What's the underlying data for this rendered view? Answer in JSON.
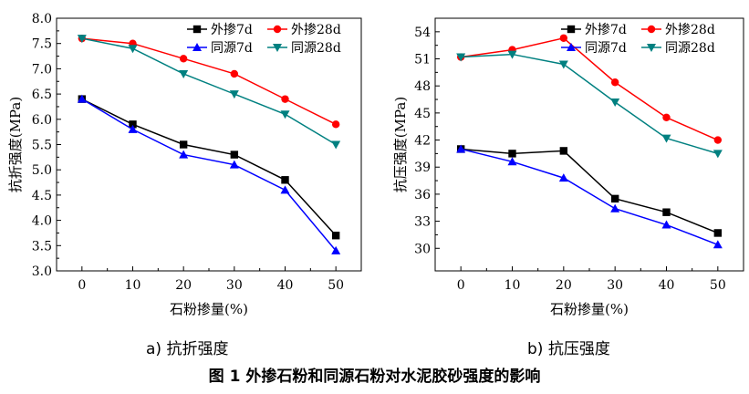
{
  "captions": {
    "a": "a) 抗折强度",
    "b": "b) 抗压强度",
    "figure": "图 1 外掺石粉和同源石粉对水泥胶砂强度的影响"
  },
  "chart_data": [
    {
      "type": "line",
      "title": "",
      "xlabel": "石粉掺量(%)",
      "ylabel": "抗折强度(MPa)",
      "x": [
        0,
        10,
        20,
        30,
        40,
        50
      ],
      "xticks": [
        "0",
        "10",
        "20",
        "30",
        "40",
        "50"
      ],
      "xlim": [
        -5,
        55
      ],
      "ylim": [
        3.0,
        8.0
      ],
      "yticks": [
        "3.0",
        "3.5",
        "4.0",
        "4.5",
        "5.0",
        "5.5",
        "6.0",
        "6.5",
        "7.0",
        "7.5",
        "8.0"
      ],
      "grid": false,
      "legend_position": "top-right",
      "series": [
        {
          "name": "外掺7d",
          "color": "#000000",
          "marker": "square",
          "values": [
            6.4,
            5.9,
            5.5,
            5.3,
            4.8,
            3.7
          ]
        },
        {
          "name": "外掺28d",
          "color": "#ff0000",
          "marker": "circle",
          "values": [
            7.6,
            7.5,
            7.2,
            6.9,
            6.4,
            5.9
          ]
        },
        {
          "name": "同源7d",
          "color": "#0000ff",
          "marker": "triangle-up",
          "values": [
            6.4,
            5.8,
            5.3,
            5.1,
            4.6,
            3.4
          ]
        },
        {
          "name": "同源28d",
          "color": "#008080",
          "marker": "triangle-down",
          "values": [
            7.6,
            7.4,
            6.9,
            6.5,
            6.1,
            5.5
          ]
        }
      ]
    },
    {
      "type": "line",
      "title": "",
      "xlabel": "石粉掺量(%)",
      "ylabel": "抗压强度(MPa)",
      "x": [
        0,
        10,
        20,
        30,
        40,
        50
      ],
      "xticks": [
        "0",
        "10",
        "20",
        "30",
        "40",
        "50"
      ],
      "xlim": [
        -5,
        55
      ],
      "ylim": [
        27.5,
        55.5
      ],
      "yticks": [
        "30",
        "33",
        "36",
        "39",
        "42",
        "45",
        "48",
        "51",
        "54"
      ],
      "grid": false,
      "legend_position": "top-right",
      "series": [
        {
          "name": "外掺7d",
          "color": "#000000",
          "marker": "square",
          "values": [
            41.0,
            40.5,
            40.8,
            35.5,
            34.0,
            31.7
          ]
        },
        {
          "name": "外掺28d",
          "color": "#ff0000",
          "marker": "circle",
          "values": [
            51.2,
            52.0,
            53.3,
            48.4,
            44.5,
            42.0
          ]
        },
        {
          "name": "同源7d",
          "color": "#0000ff",
          "marker": "triangle-up",
          "values": [
            41.0,
            39.6,
            37.8,
            34.4,
            32.6,
            30.4
          ]
        },
        {
          "name": "同源28d",
          "color": "#008080",
          "marker": "triangle-down",
          "values": [
            51.2,
            51.5,
            50.4,
            46.2,
            42.2,
            40.5
          ]
        }
      ]
    }
  ]
}
